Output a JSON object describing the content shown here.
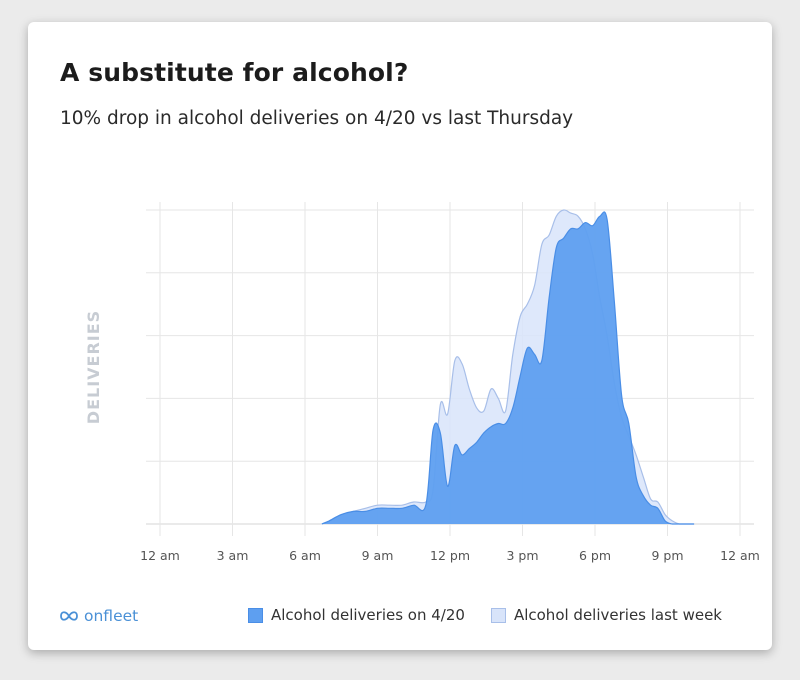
{
  "title": "A substitute for alcohol?",
  "subtitle": "10% drop in alcohol deliveries on 4/20 vs last Thursday",
  "brand": {
    "name": "onfleet",
    "icon": "infinity-icon",
    "color": "#4a90d6"
  },
  "chart_data": {
    "type": "area",
    "title": "A substitute for alcohol?",
    "subtitle": "10% drop in alcohol deliveries on 4/20 vs last Thursday",
    "xlabel": "",
    "ylabel": "DELIVERIES",
    "x_ticks": [
      "12 am",
      "3 am",
      "6 am",
      "9 am",
      "12 pm",
      "3 pm",
      "6 pm",
      "9 pm",
      "12 am"
    ],
    "xlim": [
      0,
      24
    ],
    "ylim": [
      0,
      100
    ],
    "y_ticks_labeled": false,
    "grid": true,
    "legend_position": "bottom",
    "x": [
      6.7,
      7.0,
      7.5,
      8.0,
      8.5,
      9.0,
      9.5,
      10.0,
      10.5,
      11.0,
      11.3,
      11.6,
      11.9,
      12.2,
      12.5,
      12.8,
      13.1,
      13.4,
      13.7,
      14.0,
      14.3,
      14.6,
      14.9,
      15.2,
      15.5,
      15.8,
      16.1,
      16.4,
      16.7,
      17.0,
      17.3,
      17.6,
      17.9,
      18.2,
      18.5,
      18.8,
      19.1,
      19.4,
      19.7,
      20.0,
      20.3,
      20.6,
      20.9,
      21.2,
      21.5,
      21.8,
      22.1
    ],
    "series": [
      {
        "name": "Alcohol deliveries on 4/20",
        "color": "#5e9ff0",
        "values": [
          0,
          1,
          3,
          4,
          4,
          5,
          5,
          5,
          6,
          6,
          30,
          29,
          12,
          25,
          22,
          24,
          26,
          29,
          31,
          32,
          32,
          37,
          47,
          56,
          54,
          52,
          72,
          88,
          91,
          94,
          94,
          96,
          95,
          98,
          97,
          71,
          41,
          32,
          15,
          9,
          6,
          5,
          1,
          0,
          0,
          0,
          0
        ]
      },
      {
        "name": "Alcohol deliveries last week",
        "color": "#d8e4fa",
        "values": [
          0,
          1,
          3,
          4,
          5,
          6,
          6,
          6,
          7,
          7,
          11,
          38,
          35,
          52,
          51,
          43,
          37,
          36,
          43,
          40,
          36,
          54,
          66,
          70,
          76,
          89,
          92,
          98,
          100,
          99,
          98,
          94,
          86,
          72,
          60,
          45,
          34,
          28,
          22,
          15,
          8,
          7,
          3,
          1,
          0,
          0,
          0
        ]
      }
    ]
  }
}
